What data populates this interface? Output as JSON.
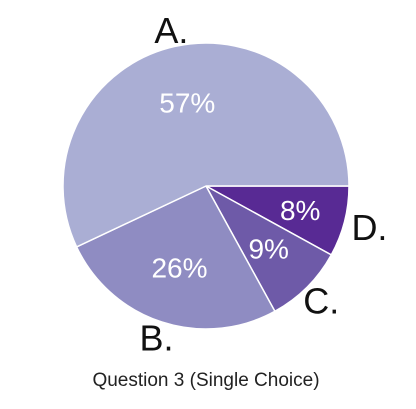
{
  "chart_data": {
    "type": "pie",
    "title": "Question 3 (Single Choice)",
    "slices": [
      {
        "category": "A.",
        "value": 57,
        "label": "57%",
        "color": "#aaaed4"
      },
      {
        "category": "B.",
        "value": 26,
        "label": "26%",
        "color": "#8f8cc2"
      },
      {
        "category": "C.",
        "value": 9,
        "label": "9%",
        "color": "#6e5aa8"
      },
      {
        "category": "D.",
        "value": 8,
        "label": "8%",
        "color": "#582a94"
      }
    ]
  }
}
